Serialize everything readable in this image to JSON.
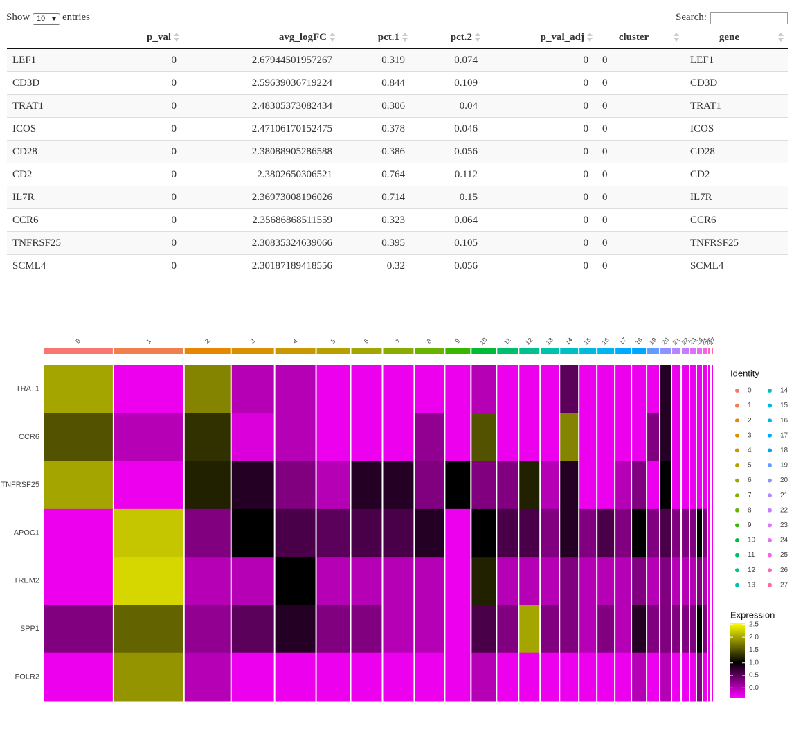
{
  "controls": {
    "show": "Show",
    "page_length": 10,
    "entries": "entries",
    "search": "Search:"
  },
  "table": {
    "columns": [
      "p_val",
      "avg_logFC",
      "pct.1",
      "pct.2",
      "p_val_adj",
      "cluster",
      "gene"
    ],
    "rows": [
      [
        "LEF1",
        0,
        2.67944501957267,
        0.319,
        0.074,
        0,
        "0",
        "LEF1"
      ],
      [
        "CD3D",
        0,
        2.59639036719224,
        0.844,
        0.109,
        0,
        "0",
        "CD3D"
      ],
      [
        "TRAT1",
        0,
        2.48305373082434,
        0.306,
        0.04,
        0,
        "0",
        "TRAT1"
      ],
      [
        "ICOS",
        0,
        2.47106170152475,
        0.378,
        0.046,
        0,
        "0",
        "ICOS"
      ],
      [
        "CD28",
        0,
        2.38088905286588,
        0.386,
        0.056,
        0,
        "0",
        "CD28"
      ],
      [
        "CD2",
        0,
        2.3802650306521,
        0.764,
        0.112,
        0,
        "0",
        "CD2"
      ],
      [
        "IL7R",
        0,
        2.36973008196026,
        0.714,
        0.15,
        0,
        "0",
        "IL7R"
      ],
      [
        "CCR6",
        0,
        2.35686868511559,
        0.323,
        0.064,
        0,
        "0",
        "CCR6"
      ],
      [
        "TNFRSF25",
        0,
        2.30835324639066,
        0.395,
        0.105,
        0,
        "0",
        "TNFRSF25"
      ],
      [
        "SCML4",
        0,
        2.30187189418556,
        0.32,
        0.056,
        0,
        "0",
        "SCML4"
      ]
    ]
  },
  "chart_data": {
    "type": "heatmap",
    "clusters": [
      "0",
      "1",
      "2",
      "3",
      "4",
      "5",
      "6",
      "7",
      "8",
      "9",
      "10",
      "11",
      "12",
      "13",
      "14",
      "15",
      "16",
      "17",
      "18",
      "19",
      "20",
      "21",
      "22",
      "23",
      "24",
      "25",
      "26",
      "27"
    ],
    "cells": [
      1000,
      1000,
      660,
      610,
      580,
      480,
      440,
      440,
      420,
      360,
      350,
      300,
      290,
      260,
      260,
      240,
      240,
      220,
      200,
      170,
      150,
      120,
      100,
      80,
      70,
      50,
      30,
      20
    ],
    "cluster_colors": [
      "#F8766D",
      "#F07E4F",
      "#E58700",
      "#D89000",
      "#C99800",
      "#B79F00",
      "#A3A500",
      "#8BAB00",
      "#6BB100",
      "#39B600",
      "#00BA38",
      "#00BE6C",
      "#00C08D",
      "#00C1AA",
      "#00BFC4",
      "#00BADE",
      "#00B4EF",
      "#00ABFD",
      "#00A5FF",
      "#619CFF",
      "#8F91FF",
      "#B385FF",
      "#C77CFF",
      "#DB72FB",
      "#E86BF2",
      "#F564E3",
      "#FF61C3",
      "#FF67A4"
    ],
    "genes": [
      "TRAT1",
      "CCR6",
      "TNFRSF25",
      "APOC1",
      "TREM2",
      "SPP1",
      "FOLR2"
    ],
    "matrix": [
      [
        2.0,
        -0.3,
        1.8,
        0.0,
        0.0,
        -0.3,
        -0.3,
        -0.3,
        -0.3,
        -0.3,
        0.0,
        -0.3,
        -0.3,
        -0.3,
        0.5,
        -0.3,
        -0.3,
        -0.3,
        -0.3,
        -0.3,
        0.8,
        -0.3,
        -0.3,
        -0.3,
        -0.3,
        -0.3,
        -0.3,
        -0.3
      ],
      [
        1.5,
        0.0,
        1.3,
        -0.2,
        0.0,
        -0.3,
        -0.3,
        -0.3,
        0.2,
        -0.3,
        1.5,
        -0.3,
        -0.3,
        -0.3,
        1.8,
        -0.3,
        -0.3,
        -0.3,
        -0.3,
        0.3,
        0.8,
        -0.3,
        -0.3,
        -0.3,
        -0.3,
        -0.3,
        -0.3,
        -0.3
      ],
      [
        2.0,
        -0.3,
        1.2,
        0.8,
        0.3,
        0.0,
        0.8,
        0.8,
        0.3,
        1.0,
        0.3,
        0.3,
        1.2,
        0.0,
        0.8,
        -0.3,
        -0.3,
        0.0,
        0.3,
        -0.3,
        1.0,
        -0.3,
        -0.3,
        -0.3,
        -0.3,
        -0.3,
        -0.3,
        -0.3
      ],
      [
        -0.3,
        2.2,
        0.3,
        1.0,
        0.6,
        0.5,
        0.6,
        0.6,
        0.8,
        -0.3,
        1.0,
        0.6,
        0.6,
        0.3,
        0.8,
        0.3,
        0.6,
        0.3,
        1.0,
        0.3,
        0.6,
        0.3,
        0.3,
        0.3,
        1.0,
        0.3,
        -0.3,
        -0.3
      ],
      [
        -0.3,
        2.3,
        0.0,
        0.0,
        1.0,
        0.0,
        0.0,
        0.0,
        0.0,
        -0.3,
        1.2,
        0.0,
        0.0,
        0.0,
        0.3,
        0.0,
        0.0,
        0.0,
        0.3,
        0.0,
        0.3,
        0.0,
        0.0,
        0.0,
        0.3,
        0.0,
        -0.3,
        -0.3
      ],
      [
        0.3,
        1.6,
        0.2,
        0.5,
        0.8,
        0.3,
        0.3,
        0.0,
        0.0,
        -0.3,
        0.6,
        0.3,
        2.0,
        0.3,
        0.3,
        0.0,
        0.3,
        0.0,
        0.8,
        0.3,
        0.3,
        0.3,
        0.3,
        0.3,
        1.0,
        0.3,
        -0.3,
        -0.3
      ],
      [
        -0.3,
        1.9,
        0.0,
        -0.3,
        -0.3,
        -0.3,
        -0.3,
        -0.3,
        -0.3,
        -0.3,
        0.0,
        -0.3,
        -0.3,
        -0.3,
        -0.3,
        -0.3,
        -0.3,
        -0.3,
        0.0,
        -0.3,
        0.0,
        -0.3,
        -0.3,
        -0.3,
        0.3,
        -0.3,
        -0.3,
        -0.3
      ]
    ],
    "legend_title": "Identity",
    "colorbar_title": "Expression",
    "clim": [
      -0.4,
      2.55
    ],
    "color_mid": 1.0,
    "colors": [
      "#FF00FF",
      "#000000",
      "#FFFF00"
    ],
    "cticks": [
      {
        "value": 0,
        "label": "0.0"
      },
      {
        "value": 0.5,
        "label": "0.5"
      },
      {
        "value": 1,
        "label": "1.0"
      },
      {
        "value": 1.5,
        "label": "1.5"
      },
      {
        "value": 2,
        "label": "2.0"
      },
      {
        "value": 2.5,
        "label": "2.5"
      }
    ]
  }
}
